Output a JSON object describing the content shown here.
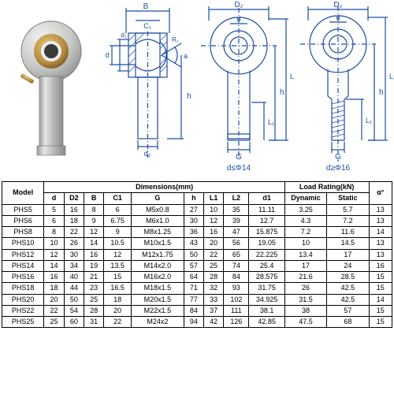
{
  "diagrams": {
    "stroke": "#1b4da6",
    "dim_label_font": 10,
    "labels_sec": [
      "B",
      "C1",
      "d",
      "d1",
      "h",
      "a",
      "R1",
      "d3"
    ],
    "labels_fem": [
      "D2",
      "d",
      "L1",
      "L2",
      "h",
      "G"
    ],
    "labels_male": [
      "D2",
      "d",
      "L1",
      "L2",
      "h",
      "G"
    ],
    "caption_fem": "d≤Φ14",
    "caption_male": "d≥Φ16"
  },
  "table": {
    "header": {
      "model": "Model",
      "dimensions": "Dimensions(mm)",
      "load": "Load Rating(kN)",
      "alpha": "α°",
      "dim_cols": [
        "d",
        "D2",
        "B",
        "C1",
        "G",
        "h",
        "L1",
        "L2",
        "d1"
      ],
      "load_cols": [
        "Dynamic",
        "Static"
      ]
    },
    "rows": [
      {
        "model": "PHS5",
        "d": "5",
        "D2": "16",
        "B": "8",
        "C1": "6",
        "G": "M5x0.8",
        "h": "27",
        "L1": "10",
        "L2": "35",
        "d1": "11.11",
        "dyn": "3.25",
        "sta": "5.7",
        "a": "13"
      },
      {
        "model": "PHS6",
        "d": "6",
        "D2": "18",
        "B": "9",
        "C1": "6.75",
        "G": "M6x1.0",
        "h": "30",
        "L1": "12",
        "L2": "39",
        "d1": "12.7",
        "dyn": "4.3",
        "sta": "7.2",
        "a": "13"
      },
      {
        "model": "PHS8",
        "d": "8",
        "D2": "22",
        "B": "12",
        "C1": "9",
        "G": "M8x1.25",
        "h": "36",
        "L1": "16",
        "L2": "47",
        "d1": "15.875",
        "dyn": "7.2",
        "sta": "11.6",
        "a": "14"
      },
      {
        "model": "PHS10",
        "d": "10",
        "D2": "26",
        "B": "14",
        "C1": "10.5",
        "G": "M10x1.5",
        "h": "43",
        "L1": "20",
        "L2": "56",
        "d1": "19.05",
        "dyn": "10",
        "sta": "14.5",
        "a": "13"
      },
      {
        "model": "PHS12",
        "d": "12",
        "D2": "30",
        "B": "16",
        "C1": "12",
        "G": "M12x1.75",
        "h": "50",
        "L1": "22",
        "L2": "65",
        "d1": "22.225",
        "dyn": "13.4",
        "sta": "17",
        "a": "13"
      },
      {
        "model": "PHS14",
        "d": "14",
        "D2": "34",
        "B": "19",
        "C1": "13.5",
        "G": "M14x2.0",
        "h": "57",
        "L1": "25",
        "L2": "74",
        "d1": "25.4",
        "dyn": "17",
        "sta": "24",
        "a": "16"
      },
      {
        "model": "PHS16",
        "d": "16",
        "D2": "40",
        "B": "21",
        "C1": "15",
        "G": "M16x2.0",
        "h": "64",
        "L1": "28",
        "L2": "84",
        "d1": "28.575",
        "dyn": "21.6",
        "sta": "28.5",
        "a": "15"
      },
      {
        "model": "PHS18",
        "d": "18",
        "D2": "44",
        "B": "23",
        "C1": "16.5",
        "G": "M18x1.5",
        "h": "71",
        "L1": "32",
        "L2": "93",
        "d1": "31.75",
        "dyn": "26",
        "sta": "42.5",
        "a": "15"
      },
      {
        "model": "PHS20",
        "d": "20",
        "D2": "50",
        "B": "25",
        "C1": "18",
        "G": "M20x1.5",
        "h": "77",
        "L1": "33",
        "L2": "102",
        "d1": "34.925",
        "dyn": "31.5",
        "sta": "42.5",
        "a": "14"
      },
      {
        "model": "PHS22",
        "d": "22",
        "D2": "54",
        "B": "28",
        "C1": "20",
        "G": "M22x1.5",
        "h": "84",
        "L1": "37",
        "L2": "111",
        "d1": "38.1",
        "dyn": "38",
        "sta": "57",
        "a": "15"
      },
      {
        "model": "PHS25",
        "d": "25",
        "D2": "60",
        "B": "31",
        "C1": "22",
        "G": "M24x2",
        "h": "94",
        "L1": "42",
        "L2": "126",
        "d1": "42.85",
        "dyn": "47.5",
        "sta": "68",
        "a": "15"
      }
    ]
  },
  "colors": {
    "table_border": "#000000",
    "text": "#000000",
    "diagram_line": "#1b4da6",
    "photo_metal": "#c8c9c7",
    "photo_brass": "#b58a3f"
  }
}
